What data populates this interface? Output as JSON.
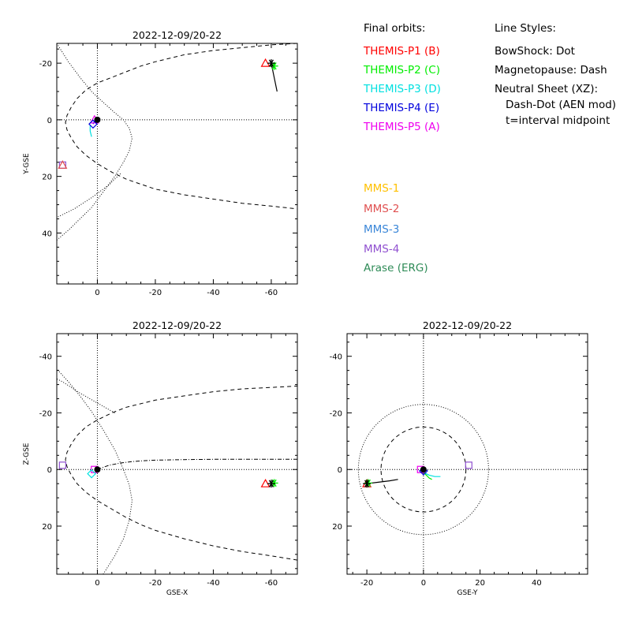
{
  "colors": {
    "themis_p1": "#ff0000",
    "themis_p2": "#00ee00",
    "themis_p3": "#00e0e0",
    "themis_p4": "#0000dd",
    "themis_p5": "#ee00ee",
    "mms_1": "#ffc000",
    "mms_2": "#e05050",
    "mms_3": "#3a86d8",
    "mms_4": "#9050d0",
    "arase": "#2e8b57",
    "earth": "#000000",
    "sun_track": "#000000"
  },
  "legend": {
    "final_orbits_title": "Final orbits:",
    "line_styles_title": "Line Styles:",
    "spacecraft": [
      {
        "label": "THEMIS-P1 (B)",
        "color_key": "themis_p1"
      },
      {
        "label": "THEMIS-P2 (C)",
        "color_key": "themis_p2"
      },
      {
        "label": "THEMIS-P3 (D)",
        "color_key": "themis_p3"
      },
      {
        "label": "THEMIS-P4 (E)",
        "color_key": "themis_p4"
      },
      {
        "label": "THEMIS-P5 (A)",
        "color_key": "themis_p5"
      }
    ],
    "other_spacecraft": [
      {
        "label": "MMS-1",
        "color_key": "mms_1"
      },
      {
        "label": "MMS-2",
        "color_key": "mms_2"
      },
      {
        "label": "MMS-3",
        "color_key": "mms_3"
      },
      {
        "label": "MMS-4",
        "color_key": "mms_4"
      },
      {
        "label": "Arase (ERG)",
        "color_key": "arase"
      }
    ],
    "line_styles": [
      "BowShock: Dot",
      "Magnetopause: Dash",
      "Neutral Sheet (XZ):",
      "Dash-Dot (AEN mod)",
      "t=interval midpoint"
    ]
  },
  "chart_data": [
    {
      "type": "scatter",
      "title": "2022-12-09/20-22",
      "xlabel": "",
      "ylabel": "Y-GSE",
      "xlim": [
        14,
        -69
      ],
      "ylim": [
        -27,
        58
      ],
      "xticks": [
        0,
        -20,
        -40,
        -60
      ],
      "yticks": [
        -20,
        0,
        20,
        40
      ],
      "grid": false,
      "boundaries": {
        "bow_shock": {
          "x": [
            14,
            10,
            6,
            2,
            -2,
            -6,
            -9,
            -11,
            -12,
            -11,
            -9,
            -6,
            -2,
            2,
            6,
            10,
            14
          ],
          "y": [
            -27,
            -20.5,
            -15,
            -10,
            -6.2,
            -2.5,
            0,
            3,
            6.5,
            11,
            15,
            20,
            25.5,
            31,
            35,
            39,
            42.5
          ],
          "extra_x": [
            -8,
            -4,
            2,
            8,
            16,
            24,
            32,
            40,
            48,
            56,
            64
          ],
          "extra_y": [
            19,
            23,
            27.5,
            31.5,
            35.5,
            39,
            42.5,
            46,
            49,
            52,
            55
          ]
        },
        "magnetopause": {
          "x": [
            -69,
            -60,
            -50,
            -40,
            -30,
            -20,
            -15,
            -10,
            -5,
            0,
            4,
            7,
            9,
            10.5,
            11,
            10.5,
            9,
            7,
            4,
            0,
            -5,
            -10,
            -20,
            -30,
            -40,
            -50,
            -60,
            -69
          ],
          "y": [
            -27,
            -26.5,
            -25.5,
            -24.5,
            -23,
            -20.5,
            -19,
            -17,
            -15,
            -13,
            -10.5,
            -7.5,
            -4.5,
            -1.5,
            1,
            3.5,
            6.5,
            9.5,
            12.5,
            15.5,
            18.5,
            21,
            24.5,
            26.5,
            28,
            29.5,
            30.5,
            31.5
          ]
        }
      },
      "markers": [
        {
          "name": "THEMIS-P1",
          "color_key": "themis_p1",
          "x": -58,
          "y": -20,
          "symbol": "triangle"
        },
        {
          "name": "THEMIS-P2",
          "color_key": "themis_p2",
          "x": -61,
          "y": -19,
          "symbol": "asterisk"
        },
        {
          "name": "THEMIS-P5",
          "color_key": "themis_p5",
          "x": 1,
          "y": 0,
          "symbol": "triangle"
        },
        {
          "name": "THEMIS-P4",
          "color_key": "themis_p4",
          "x": 1.5,
          "y": 1.5,
          "symbol": "diamond"
        },
        {
          "name": "MMS-4",
          "color_key": "mms_4",
          "x": 12,
          "y": 16,
          "symbol": "square"
        },
        {
          "name": "MMS-2",
          "color_key": "mms_2",
          "x": 12,
          "y": 16,
          "symbol": "triangle"
        },
        {
          "name": "Earth",
          "color_key": "earth",
          "x": 0,
          "y": 0,
          "symbol": "dot"
        },
        {
          "name": "Sun-track",
          "color_key": "sun_track",
          "x": -60,
          "y": -20,
          "symbol": "asterisk"
        }
      ],
      "tracks": [
        {
          "name": "THEMIS-P1 track",
          "color_key": "sun_track",
          "x": [
            -60,
            -61,
            -62
          ],
          "y": [
            -20,
            -15,
            -10
          ]
        },
        {
          "name": "THEMIS-P3 track",
          "color_key": "themis_p3",
          "x": [
            2.5,
            2.5,
            2
          ],
          "y": [
            2,
            4,
            6
          ]
        },
        {
          "name": "THEMIS-P4 track",
          "color_key": "themis_p4",
          "x": [
            1.5,
            1,
            0
          ],
          "y": [
            1.5,
            0.5,
            0
          ]
        }
      ]
    },
    {
      "type": "scatter",
      "title": "2022-12-09/20-22",
      "xlabel": "GSE-X",
      "ylabel": "Z-GSE",
      "xlim": [
        14,
        -69
      ],
      "ylim": [
        -48,
        37
      ],
      "xticks": [
        0,
        -20,
        -40,
        -60
      ],
      "yticks": [
        -40,
        -20,
        0,
        20
      ],
      "grid": false,
      "boundaries": {
        "bow_shock": {
          "x": [
            -2,
            -6,
            -9,
            -11,
            -12,
            -11,
            -9,
            -6,
            -2,
            2,
            6,
            10,
            14
          ],
          "y": [
            37,
            30.5,
            24.5,
            18,
            11,
            5.5,
            0,
            -7,
            -14,
            -20.5,
            -26,
            -31,
            -35.5
          ],
          "extra_x": [
            -6,
            0,
            6,
            12,
            20,
            28,
            36,
            44,
            50
          ],
          "extra_y": [
            -20,
            -23.5,
            -27,
            -31,
            -35,
            -38.5,
            -42,
            -45.5,
            -48
          ]
        },
        "magnetopause": {
          "x": [
            -69,
            -60,
            -50,
            -40,
            -30,
            -20,
            -15,
            -10,
            -5,
            0,
            4,
            7,
            9,
            10.5,
            11,
            10.5,
            9,
            7,
            4,
            0,
            -5,
            -10,
            -20,
            -30,
            -40,
            -50,
            -60,
            -69
          ],
          "y": [
            32,
            30.5,
            29,
            27,
            24.5,
            21.5,
            19.5,
            17,
            14,
            11,
            8,
            5,
            2,
            -1,
            -3.5,
            -6,
            -9,
            -12,
            -15,
            -17.5,
            -20,
            -22,
            -24.5,
            -26,
            -27.5,
            -28.5,
            -29,
            -29.5
          ]
        },
        "neutral_sheet": {
          "x": [
            0,
            -4,
            -8,
            -12,
            -16,
            -20,
            -30,
            -40,
            -50,
            -60,
            -69
          ],
          "y": [
            0,
            -1.5,
            -2.3,
            -2.8,
            -3.1,
            -3.3,
            -3.5,
            -3.6,
            -3.6,
            -3.6,
            -3.6
          ]
        }
      },
      "markers": [
        {
          "name": "THEMIS-P1",
          "color_key": "themis_p1",
          "x": -58,
          "y": 5,
          "symbol": "triangle"
        },
        {
          "name": "THEMIS-P2",
          "color_key": "themis_p2",
          "x": -61,
          "y": 4.8,
          "symbol": "asterisk"
        },
        {
          "name": "THEMIS-P5",
          "color_key": "themis_p5",
          "x": 1,
          "y": 0,
          "symbol": "square"
        },
        {
          "name": "THEMIS-P3",
          "color_key": "themis_p3",
          "x": 2,
          "y": 1.5,
          "symbol": "diamond"
        },
        {
          "name": "MMS-4",
          "color_key": "mms_4",
          "x": 12,
          "y": -1.5,
          "symbol": "square"
        },
        {
          "name": "Earth",
          "color_key": "earth",
          "x": 0,
          "y": 0,
          "symbol": "dot"
        },
        {
          "name": "Sun-track",
          "color_key": "sun_track",
          "x": -60,
          "y": 5,
          "symbol": "asterisk"
        }
      ],
      "tracks": []
    },
    {
      "type": "scatter",
      "title": "2022-12-09/20-22",
      "xlabel": "GSE-Y",
      "ylabel": "",
      "xlim": [
        -27,
        58
      ],
      "ylim": [
        -48,
        37
      ],
      "xticks": [
        -20,
        0,
        20,
        40
      ],
      "yticks": [
        -40,
        -20,
        0,
        20
      ],
      "grid": false,
      "boundaries": {
        "bow_shock_circle_radius": 23,
        "magnetopause_circle_radius": 15
      },
      "markers": [
        {
          "name": "THEMIS-P1",
          "color_key": "themis_p1",
          "x": -20,
          "y": 5,
          "symbol": "triangle"
        },
        {
          "name": "THEMIS-P2",
          "color_key": "themis_p2",
          "x": -19.5,
          "y": 4.8,
          "symbol": "asterisk"
        },
        {
          "name": "THEMIS-P5",
          "color_key": "themis_p5",
          "x": -1,
          "y": 0,
          "symbol": "square"
        },
        {
          "name": "THEMIS-P4",
          "color_key": "themis_p4",
          "x": 0,
          "y": 0.5,
          "symbol": "diamond"
        },
        {
          "name": "MMS-4",
          "color_key": "mms_4",
          "x": 16,
          "y": -1.5,
          "symbol": "square"
        },
        {
          "name": "Earth",
          "color_key": "earth",
          "x": 0,
          "y": 0,
          "symbol": "dot"
        },
        {
          "name": "Sun-track",
          "color_key": "sun_track",
          "x": -20,
          "y": 5,
          "symbol": "asterisk"
        }
      ],
      "tracks": [
        {
          "name": "THEMIS-P1 track",
          "color_key": "sun_track",
          "x": [
            -20,
            -16,
            -12,
            -9
          ],
          "y": [
            5,
            4.5,
            4,
            3.5
          ]
        },
        {
          "name": "THEMIS-P3 track",
          "color_key": "themis_p3",
          "x": [
            0,
            2,
            4,
            6
          ],
          "y": [
            1,
            2,
            2.5,
            2.5
          ]
        },
        {
          "name": "THEMIS-P2 track",
          "color_key": "themis_p2",
          "x": [
            0,
            1,
            2,
            3
          ],
          "y": [
            1,
            2,
            3,
            3.5
          ]
        }
      ]
    }
  ]
}
